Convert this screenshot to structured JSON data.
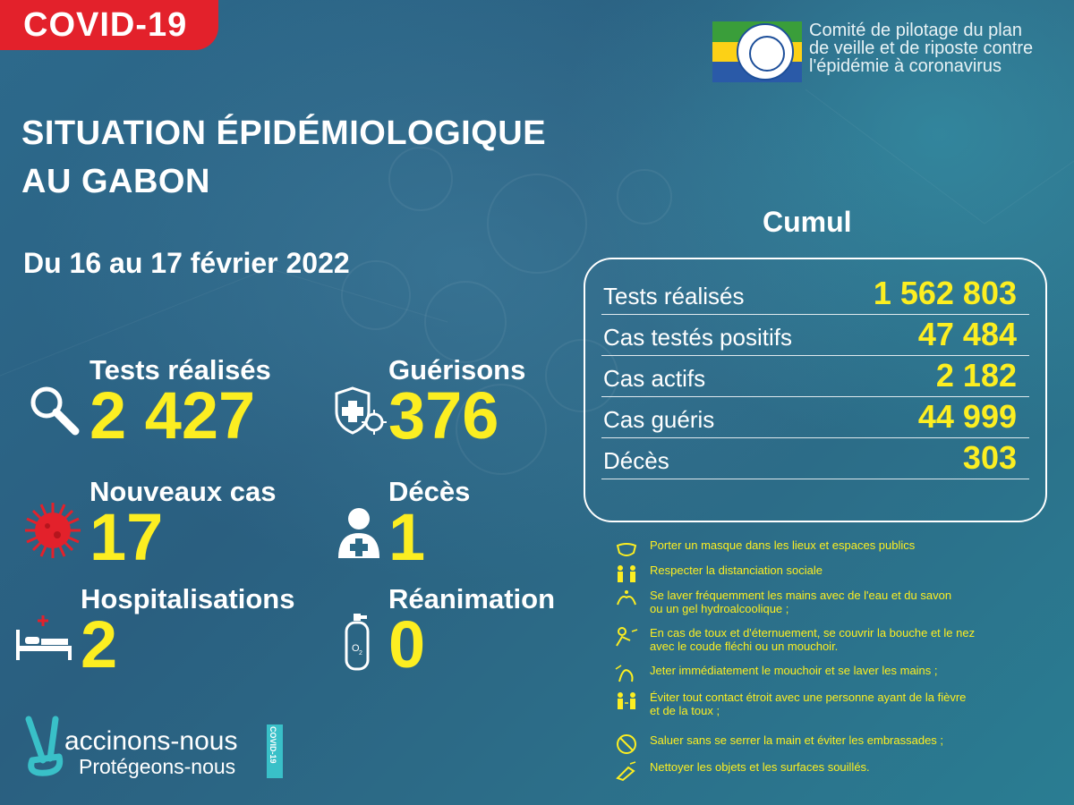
{
  "header": {
    "tag": "COVID-19",
    "committee_lines": [
      "Comité de pilotage du plan",
      "de veille et de riposte contre",
      "l'épidémie à coronavirus"
    ],
    "flag_colors": [
      "#3a9e3a",
      "#fcd116",
      "#2a5aa8"
    ]
  },
  "title": {
    "line1": "SITUATION ÉPIDÉMIOLOGIQUE",
    "line2": "AU GABON",
    "period": "Du 16 au 17 février 2022"
  },
  "stats": {
    "tests": {
      "label": "Tests réalisés",
      "value": "2 427",
      "icon": "magnifier-icon"
    },
    "recoveries": {
      "label": "Guérisons",
      "value": "376",
      "icon": "shield-virus-icon"
    },
    "new_cases": {
      "label": "Nouveaux cas",
      "value": "17",
      "icon": "virus-icon"
    },
    "deaths": {
      "label": "Décès",
      "value": "1",
      "icon": "person-cross-icon"
    },
    "hospitalizations": {
      "label": "Hospitalisations",
      "value": "2",
      "icon": "hospital-bed-icon"
    },
    "icu": {
      "label": "Réanimation",
      "value": "0",
      "icon": "oxygen-tank-icon"
    }
  },
  "cumul": {
    "title": "Cumul",
    "rows": [
      {
        "label": "Tests réalisés",
        "value": "1 562 803"
      },
      {
        "label": "Cas testés positifs",
        "value": "47 484"
      },
      {
        "label": "Cas actifs",
        "value": "2 182"
      },
      {
        "label": "Cas guéris",
        "value": "44 999"
      },
      {
        "label": "Décès",
        "value": "303"
      }
    ]
  },
  "rules": [
    {
      "text": "Porter un masque dans les lieux et espaces publics",
      "icon": "mask-icon"
    },
    {
      "text": "Respecter la distanciation sociale",
      "icon": "distancing-icon"
    },
    {
      "text": "Se laver fréquemment les mains avec de l'eau et du savon\n ou un gel hydroalcoolique ;",
      "icon": "handwash-icon"
    },
    {
      "text": "En cas de toux et d'éternuement, se couvrir la bouche et le nez\n avec le coude fléchi ou un mouchoir.",
      "icon": "cough-icon"
    },
    {
      "text": "Jeter immédiatement le mouchoir et se laver les mains ;",
      "icon": "tissue-icon"
    },
    {
      "text": "Éviter tout contact étroit avec une personne ayant de la fièvre\n et de la toux ;",
      "icon": "no-contact-icon"
    },
    {
      "text": "Saluer sans se serrer la main et éviter les embrassades ;",
      "icon": "no-handshake-icon"
    },
    {
      "text": "Nettoyer les objets et les surfaces souillés.",
      "icon": "cleaning-icon"
    }
  ],
  "campaign": {
    "line1": "accinons-nous",
    "line2": "Protégeons-nous",
    "tag": "COVID-19"
  },
  "colors": {
    "accent_yellow": "#fcee21",
    "tag_red": "#e3212b",
    "teal": "#39c0c8"
  }
}
